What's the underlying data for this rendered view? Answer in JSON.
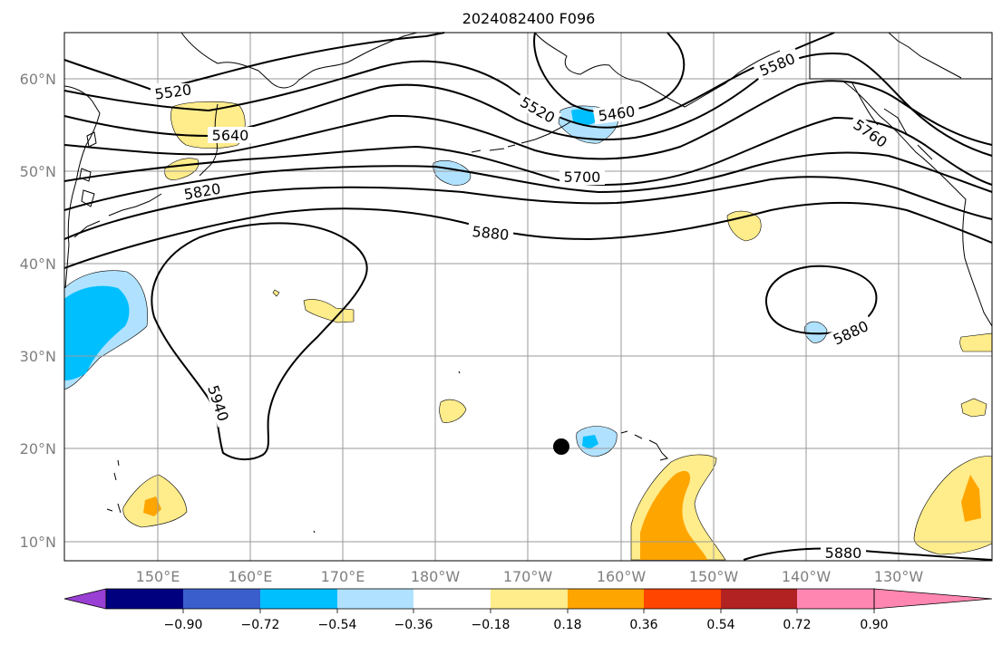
{
  "title": "2024082400 F096",
  "map": {
    "lon_labels": [
      "150°E",
      "160°E",
      "170°E",
      "180°W",
      "170°W",
      "160°W",
      "150°W",
      "140°W",
      "130°W"
    ],
    "lat_labels": [
      "60°N",
      "50°N",
      "40°N",
      "30°N",
      "20°N",
      "10°N"
    ],
    "contour_labels": [
      "5520",
      "5520",
      "5580",
      "5460",
      "5640",
      "5760",
      "5700",
      "5820",
      "5880",
      "5880",
      "5880",
      "5940"
    ],
    "marker": "black-dot"
  },
  "colorbar": {
    "tick_labels": [
      "−0.90",
      "−0.72",
      "−0.54",
      "−0.36",
      "−0.18",
      "0.18",
      "0.36",
      "0.54",
      "0.72",
      "0.90"
    ],
    "colors": [
      "#9a3fd4",
      "#00007f",
      "#3a5fcd",
      "#00bfff",
      "#b0e2ff",
      "#ffffff",
      "#ffec8b",
      "#ffa500",
      "#ff4500",
      "#b22222",
      "#ff86b0"
    ]
  }
}
